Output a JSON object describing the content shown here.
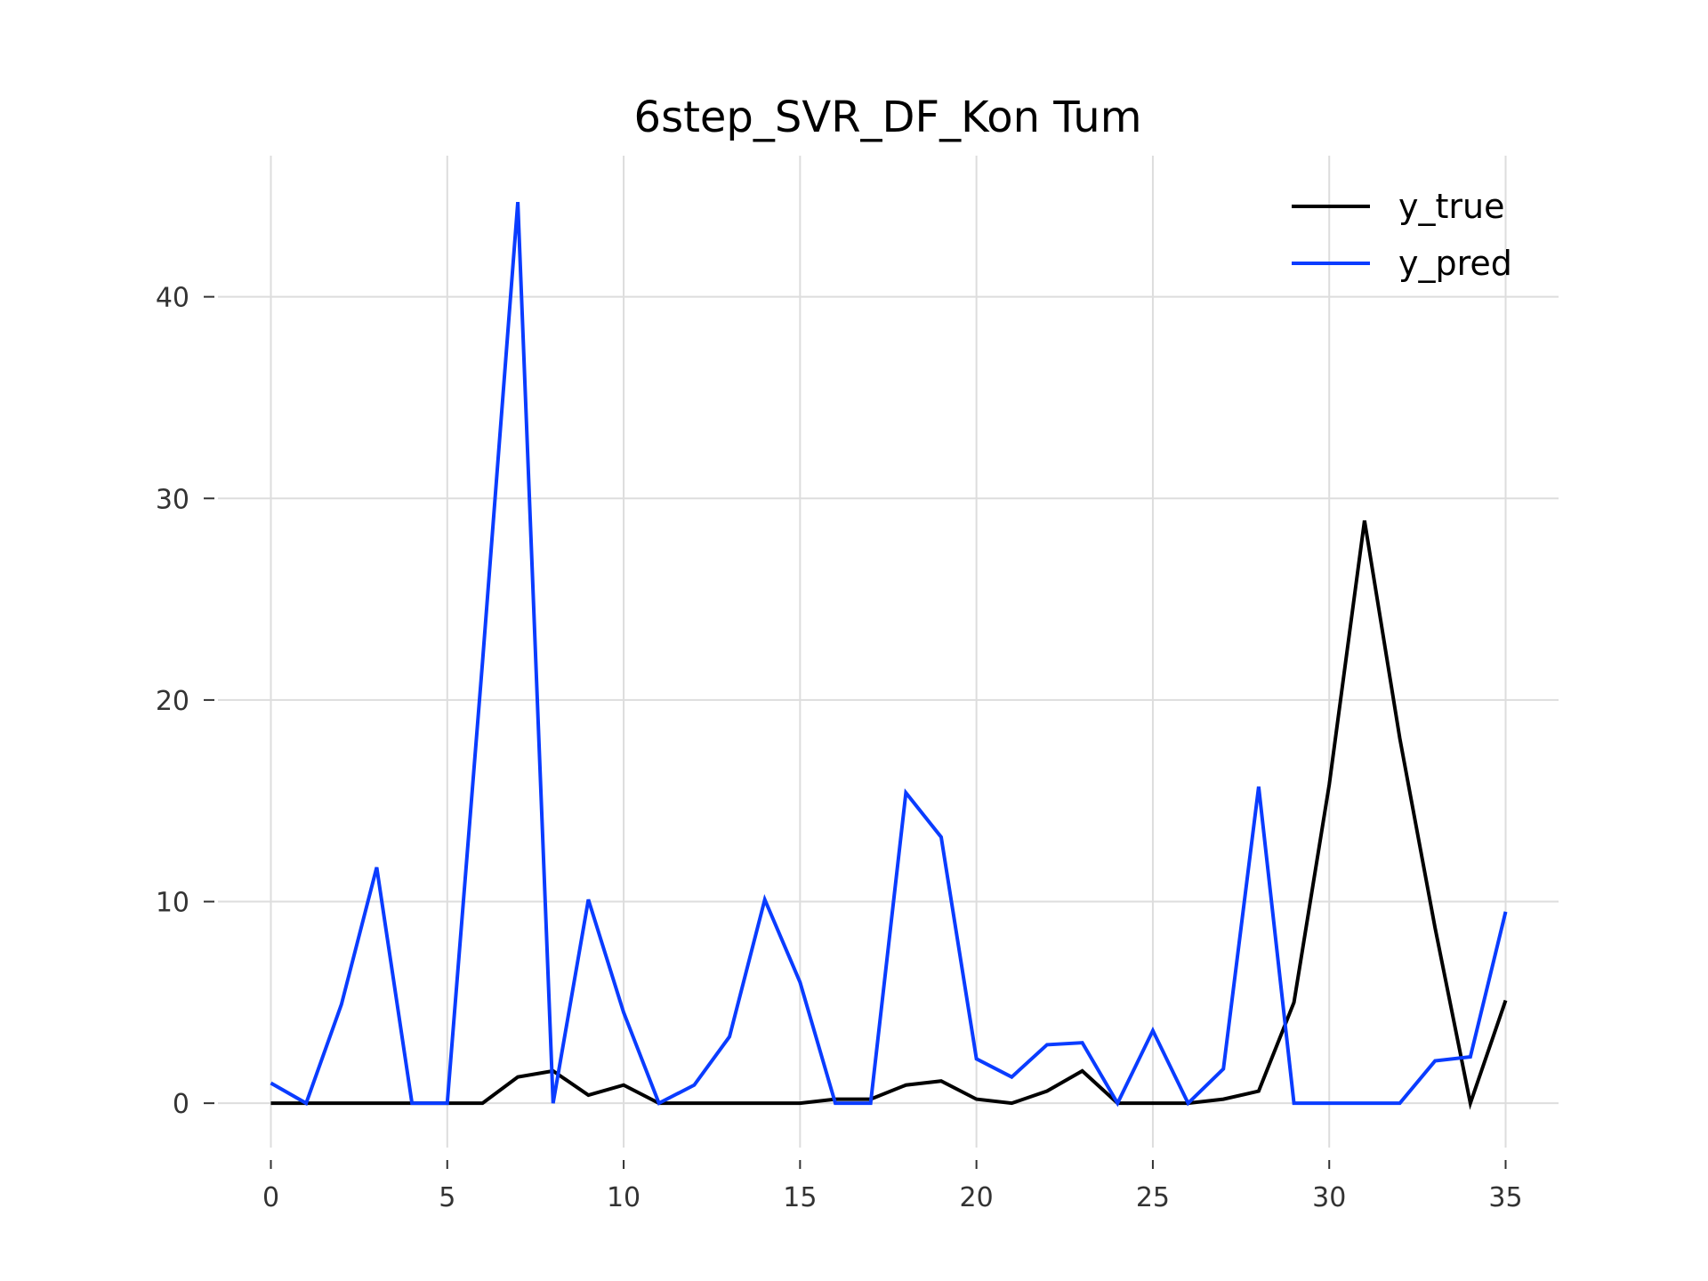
{
  "chart_data": {
    "type": "line",
    "title": "6step_SVR_DF_Kon Tum",
    "xlabel": "",
    "ylabel": "",
    "xlim": [
      -1.5,
      36.5
    ],
    "ylim": [
      -2.2,
      47.0
    ],
    "grid": true,
    "legend_position": "top-right",
    "x_ticks": [
      0,
      5,
      10,
      15,
      20,
      25,
      30,
      35
    ],
    "y_ticks": [
      0,
      10,
      20,
      30,
      40
    ],
    "x": [
      0,
      1,
      2,
      3,
      4,
      5,
      6,
      7,
      8,
      9,
      10,
      11,
      12,
      13,
      14,
      15,
      16,
      17,
      18,
      19,
      20,
      21,
      22,
      23,
      24,
      25,
      26,
      27,
      28,
      29,
      30,
      31,
      32,
      33,
      34,
      35
    ],
    "series": [
      {
        "name": "y_true",
        "color": "#000000",
        "values": [
          0,
          0,
          0,
          0,
          0,
          0,
          0,
          1.3,
          1.6,
          0.4,
          0.9,
          0,
          0,
          0,
          0,
          0,
          0.2,
          0.2,
          0.9,
          1.1,
          0.2,
          0,
          0.6,
          1.6,
          0,
          0,
          0,
          0.2,
          0.6,
          5.0,
          15.8,
          28.9,
          18.1,
          8.7,
          0,
          5.1
        ]
      },
      {
        "name": "y_pred",
        "color": "#0a3cff",
        "values": [
          1.0,
          0,
          4.9,
          11.7,
          0,
          0,
          21.9,
          44.7,
          0,
          10.1,
          4.5,
          0,
          0.9,
          3.3,
          10.1,
          6.0,
          0,
          0,
          15.4,
          13.2,
          2.2,
          1.3,
          2.9,
          3.0,
          0,
          3.6,
          0,
          1.7,
          15.7,
          0,
          0,
          0,
          0,
          2.1,
          2.3,
          9.5
        ]
      }
    ]
  }
}
